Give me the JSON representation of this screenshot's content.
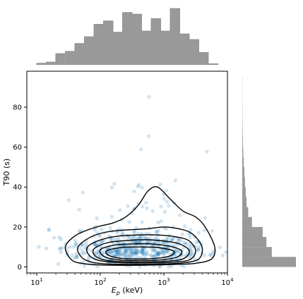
{
  "chart_data": {
    "type": "scatter",
    "title": "",
    "xlabel_main": "E",
    "xlabel_sub": "p",
    "xlabel_unit": " (keV)",
    "ylabel": "T90 (s)",
    "x_scale": "log",
    "xlim": [
      7,
      10000
    ],
    "ylim": [
      -3,
      98
    ],
    "x_ticks": [
      {
        "value": 10,
        "base": "10",
        "exp": "1"
      },
      {
        "value": 100,
        "base": "10",
        "exp": "2"
      },
      {
        "value": 1000,
        "base": "10",
        "exp": "3"
      },
      {
        "value": 10000,
        "base": "10",
        "exp": "4"
      }
    ],
    "y_ticks": [
      {
        "value": 0,
        "label": "0"
      },
      {
        "value": 20,
        "label": "20"
      },
      {
        "value": 40,
        "label": "40"
      },
      {
        "value": 60,
        "label": "60"
      },
      {
        "value": 80,
        "label": "80"
      }
    ],
    "grid": false,
    "colors": {
      "points": "#1f77b4",
      "histogram": "#999999",
      "contours": "#000000"
    },
    "point_alpha": 0.2,
    "n_points": 600,
    "density_model": {
      "log10_ep_mean": 2.6,
      "log10_ep_std": 0.55,
      "t90_median": 8,
      "t90_tail_scale": 11
    },
    "contour_levels": [
      {
        "level": 1,
        "log10_x": [
          1.45,
          1.6,
          1.8,
          2.0,
          2.2,
          2.4,
          2.6,
          2.75,
          2.9,
          3.1,
          3.3,
          3.5,
          3.65,
          3.8,
          3.75,
          3.5,
          3.2,
          2.9,
          2.6,
          2.3,
          2.0,
          1.75,
          1.55,
          1.45
        ],
        "y": [
          10,
          15.5,
          18.5,
          20.5,
          22,
          25,
          31,
          38,
          40,
          34,
          28,
          25,
          20,
          10,
          4,
          1.8,
          1.3,
          1.0,
          0.8,
          0.8,
          1.0,
          1.6,
          3.5,
          10
        ]
      },
      {
        "level": 2,
        "log10_x": [
          1.65,
          1.85,
          2.1,
          2.4,
          2.7,
          3.0,
          3.25,
          3.45,
          3.6,
          3.55,
          3.3,
          3.0,
          2.7,
          2.4,
          2.1,
          1.85,
          1.7,
          1.65
        ],
        "y": [
          10,
          15,
          17.5,
          18.5,
          19,
          20,
          19,
          16.5,
          10,
          4,
          2.0,
          1.5,
          1.3,
          1.3,
          1.5,
          2.5,
          5,
          10
        ]
      },
      {
        "level": 3,
        "log10_x": [
          1.8,
          2.0,
          2.3,
          2.6,
          2.9,
          3.2,
          3.4,
          3.5,
          3.4,
          3.1,
          2.8,
          2.5,
          2.2,
          1.95,
          1.82,
          1.8
        ],
        "y": [
          10,
          13.5,
          15.5,
          16,
          16,
          15,
          13,
          8,
          3.5,
          2.3,
          2.0,
          2.0,
          2.3,
          3.5,
          6,
          10
        ]
      },
      {
        "level": 4,
        "log10_x": [
          1.9,
          2.1,
          2.4,
          2.7,
          3.0,
          3.25,
          3.4,
          3.3,
          3.0,
          2.7,
          2.4,
          2.1,
          1.92,
          1.9
        ],
        "y": [
          9,
          12,
          13.2,
          13.6,
          13,
          11.5,
          8,
          4,
          2.8,
          2.5,
          2.6,
          3.3,
          5.5,
          9
        ]
      },
      {
        "level": 5,
        "log10_x": [
          2.0,
          2.2,
          2.5,
          2.8,
          3.1,
          3.28,
          3.2,
          2.9,
          2.6,
          2.3,
          2.07,
          2.0
        ],
        "y": [
          8.5,
          10.8,
          11.5,
          11.5,
          10.3,
          8,
          4.8,
          3.4,
          3.2,
          3.5,
          5,
          8.5
        ]
      },
      {
        "level": 6,
        "log10_x": [
          2.1,
          2.3,
          2.6,
          2.9,
          3.15,
          3.1,
          2.85,
          2.55,
          2.28,
          2.12,
          2.1
        ],
        "y": [
          8,
          9.6,
          10,
          9.7,
          8,
          5.5,
          4.2,
          4.0,
          4.5,
          6,
          8
        ]
      }
    ],
    "marginal_x_bins": {
      "log10_edges": [
        1.0,
        1.15,
        1.3,
        1.45,
        1.6,
        1.75,
        1.9,
        2.05,
        2.2,
        2.35,
        2.5,
        2.65,
        2.8,
        2.95,
        3.1,
        3.25,
        3.4,
        3.55,
        3.7,
        3.85
      ],
      "counts": [
        0.03,
        0.05,
        0.2,
        0.24,
        0.38,
        0.5,
        0.72,
        0.78,
        0.58,
        0.93,
        0.9,
        0.6,
        0.82,
        0.6,
        1.0,
        0.55,
        0.45,
        0.22,
        0.02
      ]
    },
    "marginal_y_bins": {
      "edges": [
        0,
        5,
        10,
        15,
        20,
        25,
        30,
        35,
        40,
        45,
        50,
        55,
        60,
        65,
        70,
        75,
        80,
        85,
        90,
        95
      ],
      "counts": [
        1.0,
        0.55,
        0.45,
        0.38,
        0.18,
        0.11,
        0.08,
        0.065,
        0.05,
        0.04,
        0.028,
        0.018,
        0.012,
        0.008,
        0.005,
        0.004,
        0.003,
        0.002,
        0.002
      ]
    }
  }
}
